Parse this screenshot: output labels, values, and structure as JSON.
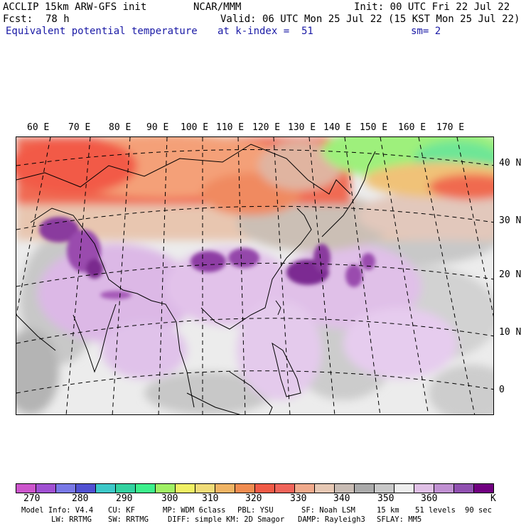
{
  "header": {
    "model": "ACCLIP 15km ARW-GFS init",
    "org": "NCAR/MMM",
    "init": "Init: 00 UTC Fri 22 Jul 22",
    "fcst_label": "Fcst:",
    "fcst_value": "78 h",
    "valid": "Valid: 06 UTC Mon 25 Jul 22 (15 KST Mon 25 Jul 22)",
    "field": "Equivalent potential temperature",
    "level": "at k-index =  51",
    "smooth": "sm= 2"
  },
  "map": {
    "lon_labels": [
      "60 E",
      "70 E",
      "80 E",
      "90 E",
      "100 E",
      "110 E",
      "120 E",
      "130 E",
      "140 E",
      "150 E",
      "160 E",
      "170 E"
    ],
    "lat_labels": [
      "40 N",
      "30 N",
      "20 N",
      "10 N",
      "0"
    ],
    "icons": [
      "coastline-icon",
      "graticule-icon"
    ]
  },
  "colorbar": {
    "colors": [
      "#cc55cc",
      "#a050d2",
      "#7878e6",
      "#5050d2",
      "#3cc8c8",
      "#32d2a0",
      "#3cf08c",
      "#a0f064",
      "#f0f064",
      "#f0dc78",
      "#f0b464",
      "#f08c50",
      "#f05a46",
      "#f0645a",
      "#f0aa8c",
      "#e6c8b4",
      "#c8bcb4",
      "#aaaaaa",
      "#c8c8c8",
      "#eeeeee",
      "#e0c0e6",
      "#c090d2",
      "#9050b0",
      "#700080"
    ],
    "ticks": [
      "270",
      "280",
      "290",
      "300",
      "310",
      "320",
      "330",
      "340",
      "350",
      "360"
    ],
    "unit": "K"
  },
  "footer": {
    "line1": [
      "Model Info: V4.4",
      "CU: KF",
      "MP: WDM 6class",
      "PBL: YSU",
      "SF: Noah LSM",
      "15 km",
      "51 levels",
      "90 sec"
    ],
    "line2": [
      "LW: RRTMG",
      "SW: RRTMG",
      "DIFF: simple",
      "KM: 2D Smagor",
      "DAMP: Rayleigh3",
      "SFLAY: MM5"
    ]
  }
}
